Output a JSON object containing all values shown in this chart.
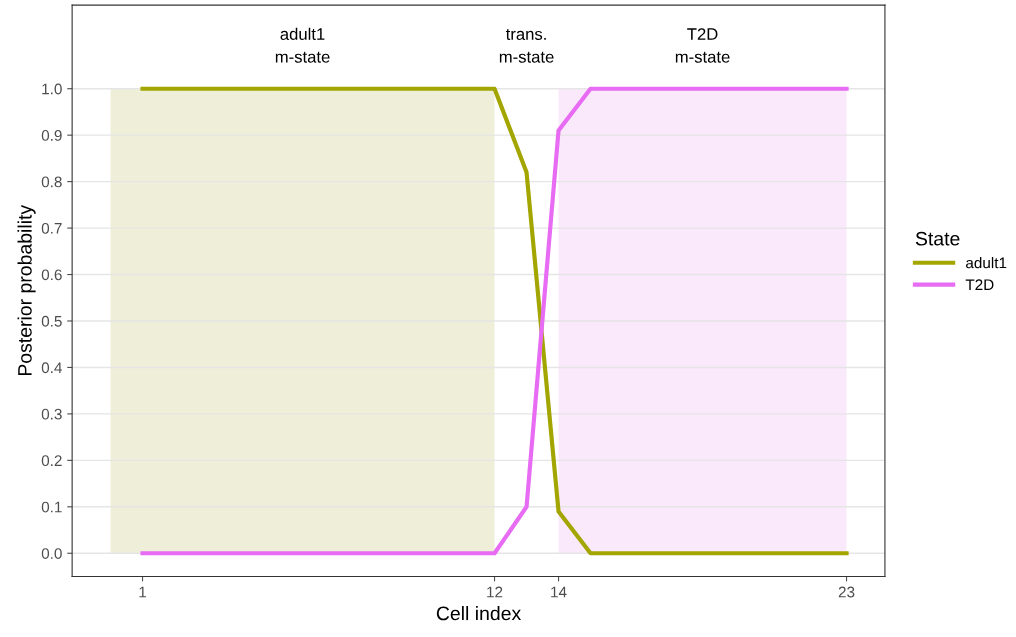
{
  "chart_data": {
    "type": "line",
    "xlabel": "Cell index",
    "ylabel": "Posterior probability",
    "legend_title": "State",
    "x": [
      1,
      2,
      3,
      4,
      5,
      6,
      7,
      8,
      9,
      10,
      11,
      12,
      13,
      14,
      15,
      16,
      17,
      18,
      19,
      20,
      21,
      22,
      23
    ],
    "series": [
      {
        "name": "adult1",
        "color": "#a3a500",
        "values": [
          1,
          1,
          1,
          1,
          1,
          1,
          1,
          1,
          1,
          1,
          1,
          1,
          0.82,
          0.09,
          0,
          0,
          0,
          0,
          0,
          0,
          0,
          0,
          0
        ]
      },
      {
        "name": "T2D",
        "color": "#e76bf3",
        "values": [
          0,
          0,
          0,
          0,
          0,
          0,
          0,
          0,
          0,
          0,
          0,
          0,
          0.1,
          0.91,
          1,
          1,
          1,
          1,
          1,
          1,
          1,
          1,
          1
        ]
      }
    ],
    "bands": [
      {
        "axis": "x",
        "from": 0,
        "to": 12,
        "label": "adult1\nm-state",
        "color": "#efeed8"
      },
      {
        "axis": "x",
        "from": 14,
        "to": 23,
        "label": "T2D\nm-state",
        "color": "#fae8fb"
      }
    ],
    "annotations": [
      "trans.\nm-state"
    ],
    "xlim": [
      -1.2,
      24.2
    ],
    "xticks": [
      1,
      12,
      14,
      23
    ],
    "ylim": [
      -0.05,
      1.18
    ],
    "yticks": [
      {
        "value": 0,
        "label": "0.0"
      },
      {
        "value": 0.1,
        "label": "0.1"
      },
      {
        "value": 0.2,
        "label": "0.2"
      },
      {
        "value": 0.3,
        "label": "0.3"
      },
      {
        "value": 0.4,
        "label": "0.4"
      },
      {
        "value": 0.5,
        "label": "0.5"
      },
      {
        "value": 0.6,
        "label": "0.6"
      },
      {
        "value": 0.7,
        "label": "0.7"
      },
      {
        "value": 0.8,
        "label": "0.8"
      },
      {
        "value": 0.9,
        "label": "0.9"
      },
      {
        "value": 1,
        "label": "1.0"
      }
    ],
    "grid": "y",
    "legend": "right",
    "line_style": "solid",
    "marker": "none"
  }
}
